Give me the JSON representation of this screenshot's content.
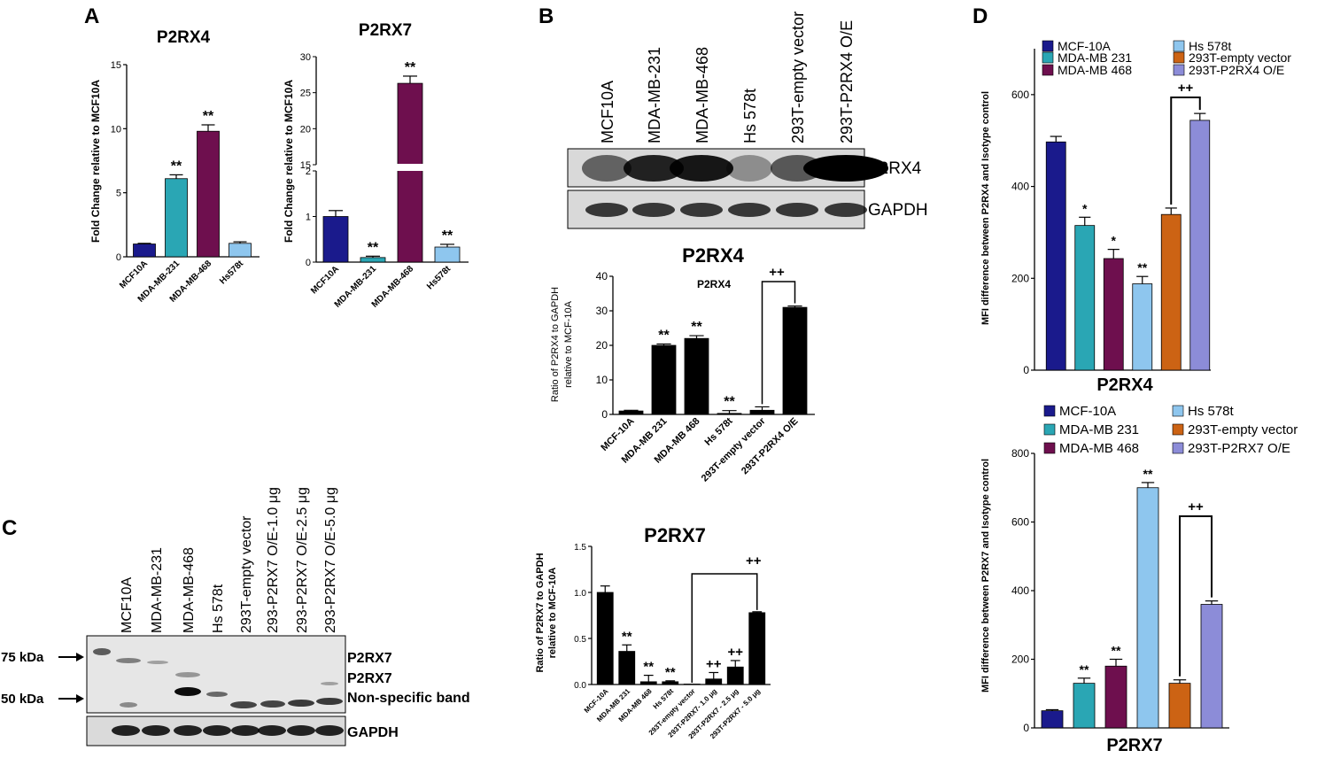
{
  "panels": {
    "A": {
      "letter": "A",
      "p2rx4": {
        "title": "P2RX4",
        "ylabel": "Fold Change relative to MCF10A",
        "categories": [
          "MCF10A",
          "MDA-MB-231",
          "MDA-MB-468",
          "Hs578t"
        ],
        "values": [
          1.0,
          6.1,
          9.8,
          1.05
        ],
        "errors": [
          0.05,
          0.3,
          0.5,
          0.12
        ],
        "ylim": [
          0,
          15
        ],
        "ticks": [
          0,
          5,
          10,
          15
        ],
        "sig": [
          "",
          "**",
          "**",
          ""
        ],
        "colors": [
          "#1a1a8c",
          "#2aa6b4",
          "#6e0f4e",
          "#8ec6ee"
        ]
      },
      "p2rx7": {
        "title": "P2RX7",
        "ylabel": "Fold Change relative to MCF10A",
        "categories": [
          "MCF10A",
          "MDA-MB-231",
          "MDA-MB-468",
          "Hs578t"
        ],
        "values": [
          1.0,
          0.1,
          26.3,
          0.33
        ],
        "errors": [
          0.13,
          0.03,
          1.0,
          0.06
        ],
        "lower_ticks": [
          0,
          1,
          2
        ],
        "upper_ticks": [
          15,
          20,
          25,
          30
        ],
        "sig": [
          "",
          "**",
          "**",
          "**"
        ],
        "colors": [
          "#1a1a8c",
          "#2aa6b4",
          "#6e0f4e",
          "#8ec6ee"
        ]
      }
    },
    "B": {
      "letter": "B",
      "lanes": [
        "MCF10A",
        "MDA-MB-231",
        "MDA-MB-468",
        "Hs 578t",
        "293T-empty vector",
        "293T-P2RX4 O/E"
      ],
      "blot_labels": [
        "P2RX4",
        "GAPDH"
      ],
      "chart": {
        "title": "P2RX4",
        "inner_label": "P2RX4",
        "ylabel_lines": [
          "Ratio of P2RX4 to GAPDH",
          "relative to MCF-10A"
        ],
        "categories": [
          "MCF-10A",
          "MDA-MB 231",
          "MDA-MB 468",
          "Hs 578t",
          "293T-empty vector",
          "293T-P2RX4 O/E"
        ],
        "values": [
          1.0,
          20.0,
          22.0,
          0.3,
          1.2,
          31.0
        ],
        "errors": [
          0.2,
          0.4,
          0.8,
          0.8,
          1.0,
          0.4
        ],
        "ylim": [
          0,
          40
        ],
        "ticks": [
          0,
          10,
          20,
          30,
          40
        ],
        "sig": [
          "",
          "**",
          "**",
          "**",
          "",
          ""
        ],
        "bracket": "++"
      },
      "p2rx7_chart": {
        "title": "P2RX7",
        "ylabel_lines": [
          "Ratio of P2RX7 to GAPDH",
          "relative to MCF-10A"
        ],
        "categories": [
          "MCF-10A",
          "MDA-MB 231",
          "MDA-MB 468",
          "Hs 578t",
          "293T-empty vector",
          "293T-P2RX7- 1.0 μg",
          "293T-P2RX7 - 2.5 μg",
          "293T-P2RX7 - 5.0 μg"
        ],
        "values": [
          1.0,
          0.36,
          0.03,
          0.03,
          0.0,
          0.06,
          0.19,
          0.78
        ],
        "errors": [
          0.07,
          0.07,
          0.07,
          0.01,
          0.0,
          0.07,
          0.07,
          0.01
        ],
        "ylim": [
          0,
          1.5
        ],
        "ticks": [
          "0.0",
          "0.5",
          "1.0",
          "1.5"
        ],
        "sig": [
          "",
          "**",
          "**",
          "**",
          "",
          "++",
          "++",
          ""
        ],
        "bracket": "++"
      }
    },
    "C": {
      "letter": "C",
      "lanes": [
        "MCF10A",
        "MDA-MB-231",
        "MDA-MB-468",
        "Hs 578t",
        "293T-empty vector",
        "293-P2RX7 O/E-1.0 μg",
        "293-P2RX7 O/E-2.5 μg",
        "293-P2RX7 O/E-5.0 μg"
      ],
      "markers": [
        "75 kDa",
        "50 kDa"
      ],
      "band_labels": [
        "P2RX7",
        "P2RX7",
        "Non-specific band"
      ],
      "gapdh_label": "GAPDH"
    },
    "D": {
      "letter": "D",
      "p2rx4": {
        "title": "P2RX4",
        "ylabel": "MFI difference between P2RX4 and Isotype control",
        "legend": [
          "MCF-10A",
          "MDA-MB 231",
          "MDA-MB 468",
          "Hs 578t",
          "293T-empty vector",
          "293T-P2RX4 O/E"
        ],
        "values": [
          497,
          315,
          243,
          188,
          339,
          544
        ],
        "errors": [
          12,
          18,
          20,
          16,
          14,
          15
        ],
        "ylim": [
          0,
          700
        ],
        "ticks": [
          0,
          200,
          400,
          600
        ],
        "sig": [
          "",
          "*",
          "*",
          "**",
          "",
          ""
        ],
        "bracket": "++",
        "colors": [
          "#1a1a8c",
          "#2aa6b4",
          "#6e0f4e",
          "#8ec6ee",
          "#cc6314",
          "#8c8cd8"
        ]
      },
      "p2rx7": {
        "title": "P2RX7",
        "ylabel": "MFI difference between P2RX7 and Isotype control",
        "legend": [
          "MCF-10A",
          "MDA-MB 231",
          "MDA-MB 468",
          "Hs 578t",
          "293T-empty vector",
          "293T-P2RX7 O/E"
        ],
        "values": [
          50,
          130,
          180,
          700,
          130,
          360
        ],
        "errors": [
          3,
          15,
          20,
          15,
          10,
          10
        ],
        "ylim": [
          0,
          800
        ],
        "ticks": [
          0,
          200,
          400,
          600,
          800
        ],
        "sig": [
          "",
          "**",
          "**",
          "**",
          "",
          ""
        ],
        "bracket": "++",
        "colors": [
          "#1a1a8c",
          "#2aa6b4",
          "#6e0f4e",
          "#8ec6ee",
          "#cc6314",
          "#8c8cd8"
        ]
      }
    }
  },
  "chart_data": [
    {
      "type": "bar",
      "title": "P2RX4",
      "ylabel": "Fold Change relative to MCF10A",
      "categories": [
        "MCF10A",
        "MDA-MB-231",
        "MDA-MB-468",
        "Hs578t"
      ],
      "values": [
        1.0,
        6.1,
        9.8,
        1.05
      ],
      "ylim": [
        0,
        15
      ]
    },
    {
      "type": "bar",
      "title": "P2RX7",
      "ylabel": "Fold Change relative to MCF10A",
      "categories": [
        "MCF10A",
        "MDA-MB-231",
        "MDA-MB-468",
        "Hs578t"
      ],
      "values": [
        1.0,
        0.1,
        26.3,
        0.33
      ],
      "ylim": [
        0,
        30
      ]
    },
    {
      "type": "bar",
      "title": "P2RX4",
      "ylabel": "Ratio of P2RX4 to GAPDH relative to MCF-10A",
      "categories": [
        "MCF-10A",
        "MDA-MB 231",
        "MDA-MB 468",
        "Hs 578t",
        "293T-empty vector",
        "293T-P2RX4 O/E"
      ],
      "values": [
        1.0,
        20.0,
        22.0,
        0.3,
        1.2,
        31.0
      ],
      "ylim": [
        0,
        40
      ]
    },
    {
      "type": "bar",
      "title": "P2RX7",
      "ylabel": "Ratio of P2RX7 to GAPDH relative to MCF-10A",
      "categories": [
        "MCF-10A",
        "MDA-MB 231",
        "MDA-MB 468",
        "Hs 578t",
        "293T-empty vector",
        "293T-P2RX7- 1.0 μg",
        "293T-P2RX7 - 2.5 μg",
        "293T-P2RX7 - 5.0 μg"
      ],
      "values": [
        1.0,
        0.36,
        0.03,
        0.03,
        0.0,
        0.06,
        0.19,
        0.78
      ],
      "ylim": [
        0,
        1.5
      ]
    },
    {
      "type": "bar",
      "title": "P2RX4",
      "ylabel": "MFI difference between P2RX4 and Isotype control",
      "categories": [
        "MCF-10A",
        "MDA-MB 231",
        "MDA-MB 468",
        "Hs 578t",
        "293T-empty vector",
        "293T-P2RX4 O/E"
      ],
      "values": [
        497,
        315,
        243,
        188,
        339,
        544
      ],
      "ylim": [
        0,
        700
      ]
    },
    {
      "type": "bar",
      "title": "P2RX7",
      "ylabel": "MFI difference between P2RX7 and Isotype control",
      "categories": [
        "MCF-10A",
        "MDA-MB 231",
        "MDA-MB 468",
        "Hs 578t",
        "293T-empty vector",
        "293T-P2RX7 O/E"
      ],
      "values": [
        50,
        130,
        180,
        700,
        130,
        360
      ],
      "ylim": [
        0,
        800
      ]
    }
  ]
}
